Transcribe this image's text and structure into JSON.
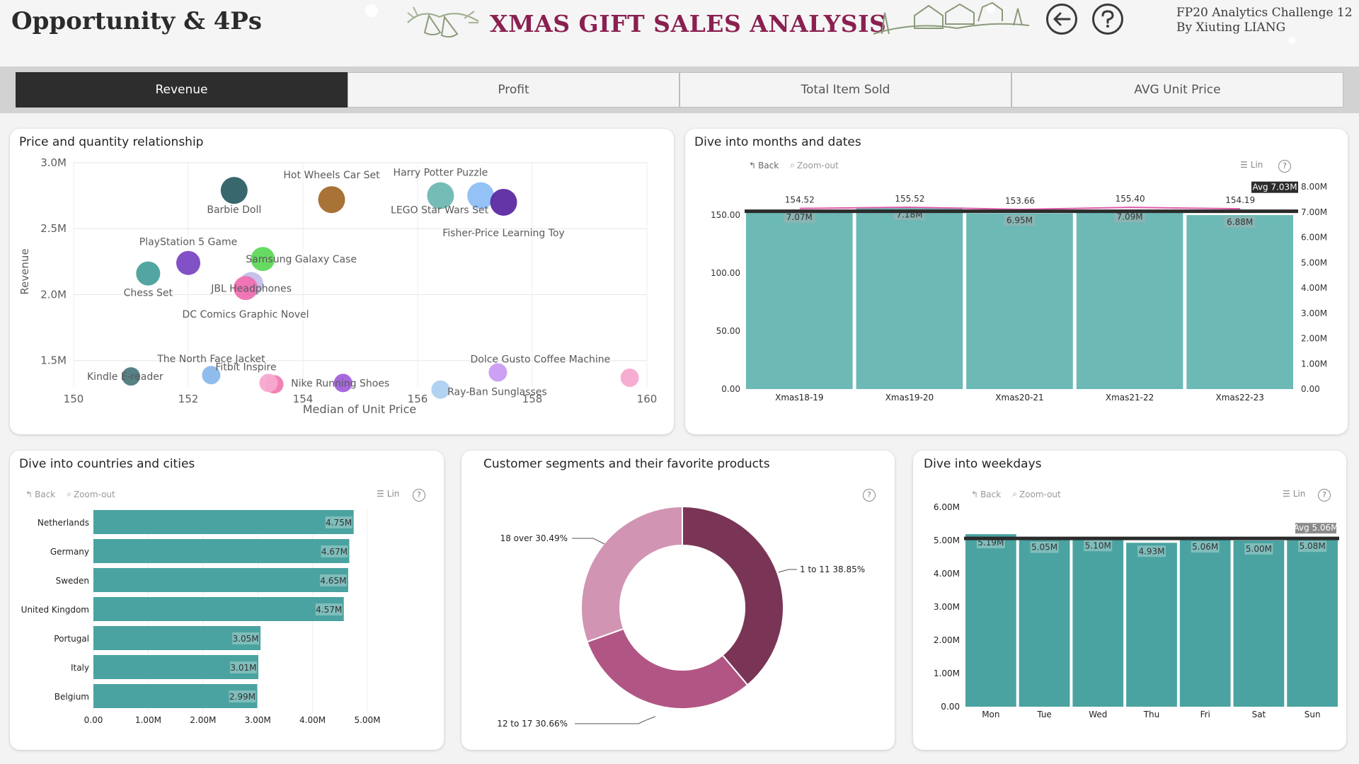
{
  "header": {
    "page_title": "Opportunity & 4Ps",
    "main_title": "XMAS GIFT SALES ANALYSIS",
    "credit_line1": "FP20 Analytics Challenge 12",
    "credit_line2": "By Xiuting LIANG",
    "back_icon": "arrow-left-circle-icon",
    "help_icon": "question-circle-icon"
  },
  "tabs": [
    {
      "label": "Revenue",
      "active": true
    },
    {
      "label": "Profit",
      "active": false
    },
    {
      "label": "Total Item Sold",
      "active": false
    },
    {
      "label": "AVG Unit Price",
      "active": false
    }
  ],
  "toolbar": {
    "back": "Back",
    "zoom_out": "Zoom-out",
    "lin": "Lin",
    "help": "?"
  },
  "colors": {
    "accent": "#8a2050",
    "teal": "#5fb2b0",
    "dark_tab": "#2d2d2d",
    "line_pink": "#e05aa8"
  },
  "scatter": {
    "title": "Price and quantity relationship",
    "chart_data": {
      "type": "scatter",
      "xlabel": "Median of Unit Price",
      "ylabel": "Revenue",
      "xlim": [
        150,
        160
      ],
      "ylim": [
        1.3,
        3.0
      ],
      "x_ticks": [
        "150",
        "152",
        "154",
        "156",
        "158",
        "160"
      ],
      "y_ticks": [
        {
          "value": 3.0,
          "label": "3.0M"
        },
        {
          "value": 2.5,
          "label": "2.5M"
        },
        {
          "value": 2.0,
          "label": "2.0M"
        },
        {
          "value": 1.5,
          "label": "1.5M"
        }
      ],
      "points": [
        {
          "label": "Barbie Doll",
          "x": 152.8,
          "y": 2.79,
          "color": "#2e5f66"
        },
        {
          "label": "Hot Wheels Car Set",
          "x": 154.5,
          "y": 2.72,
          "color": "#a46a2c"
        },
        {
          "label": "Harry Potter Puzzle",
          "x": 156.4,
          "y": 2.75,
          "color": "#6fb8b2"
        },
        {
          "label": "LEGO Star Wars Set",
          "x": 157.1,
          "y": 2.75,
          "color": "#8fbff5"
        },
        {
          "label": "Fisher-Price Learning Toy",
          "x": 157.5,
          "y": 2.7,
          "color": "#5b2aa2"
        },
        {
          "label": "PlayStation 5 Game",
          "x": 152.0,
          "y": 2.24,
          "color": "#7a48c2"
        },
        {
          "label": "Samsung Galaxy Case",
          "x": 153.3,
          "y": 2.27,
          "color": "#5fd85a"
        },
        {
          "label": "Chess Set",
          "x": 151.3,
          "y": 2.16,
          "color": "#4aa09c"
        },
        {
          "label": "JBL Headphones",
          "x": 153.1,
          "y": 2.08,
          "color": "#c2bfe8"
        },
        {
          "label": "DC Comics Graphic Novel",
          "x": 153.0,
          "y": 2.05,
          "color": "#f070b2"
        },
        {
          "label": "The North Face Jacket",
          "x": 152.4,
          "y": 1.39,
          "color": "#8ab8ec"
        },
        {
          "label": "Kindle E-reader",
          "x": 151.0,
          "y": 1.38,
          "color": "#4e7a7e"
        },
        {
          "label": "Fitbit Inspire",
          "x": 153.5,
          "y": 1.32,
          "color": "#f07cb0"
        },
        {
          "label": "Nike Running Shoes",
          "x": 154.7,
          "y": 1.33,
          "color": "#a360dc"
        },
        {
          "label": "Dolce Gusto Coffee Machine",
          "x": 157.4,
          "y": 1.41,
          "color": "#c99cf2"
        },
        {
          "label": "Ray-Ban Sunglasses",
          "x": 156.4,
          "y": 1.28,
          "color": "#aed0f0"
        },
        {
          "label": "",
          "x": 153.4,
          "y": 1.33,
          "color": "#f7a9d0"
        },
        {
          "label": "",
          "x": 159.7,
          "y": 1.37,
          "color": "#f7a9d0"
        }
      ]
    }
  },
  "months": {
    "title": "Dive into months and dates",
    "avg_label": "Avg 7.03M",
    "chart_data": {
      "type": "bar",
      "categories": [
        "Xmas18-19",
        "Xmas19-20",
        "Xmas20-21",
        "Xmas21-22",
        "Xmas22-23"
      ],
      "series": [
        {
          "name": "Revenue",
          "values": [
            7.07,
            7.18,
            6.95,
            7.09,
            6.88
          ],
          "labels": [
            "7.07M",
            "7.18M",
            "6.95M",
            "7.09M",
            "6.88M"
          ]
        },
        {
          "name": "Unit Price",
          "values": [
            154.52,
            155.52,
            153.66,
            155.4,
            154.19
          ],
          "labels": [
            "154.52",
            "155.52",
            "153.66",
            "155.40",
            "154.19"
          ]
        }
      ],
      "left_ticks": [
        "150.00",
        "100.00",
        "50.00",
        "0.00"
      ],
      "right_ticks": [
        "8.00M",
        "7.00M",
        "6.00M",
        "5.00M",
        "4.00M",
        "3.00M",
        "2.00M",
        "1.00M",
        "0.00"
      ],
      "ylim_left": [
        0,
        150
      ],
      "ylim_right": [
        0,
        8
      ],
      "avg": 7.03
    }
  },
  "countries": {
    "title": "Dive into countries and cities",
    "chart_data": {
      "type": "bar",
      "orientation": "horizontal",
      "categories": [
        "Netherlands",
        "Germany",
        "Sweden",
        "United Kingdom",
        "Portugal",
        "Italy",
        "Belgium"
      ],
      "values": [
        4.75,
        4.67,
        4.65,
        4.57,
        3.05,
        3.01,
        2.99
      ],
      "labels": [
        "4.75M",
        "4.67M",
        "4.65M",
        "4.57M",
        "3.05M",
        "3.01M",
        "2.99M"
      ],
      "x_ticks": [
        "0.00",
        "1.00M",
        "2.00M",
        "3.00M",
        "4.00M",
        "5.00M"
      ],
      "xlim": [
        0,
        5
      ]
    }
  },
  "segments": {
    "title": "Customer segments and their favorite products",
    "chart_data": {
      "type": "pie",
      "donut": true,
      "slices": [
        {
          "label": "1 to 11 38.85%",
          "value": 38.85,
          "color": "#7a3556"
        },
        {
          "label": "12 to 17 30.66%",
          "value": 30.66,
          "color": "#b15684"
        },
        {
          "label": "18 over 30.49%",
          "value": 30.49,
          "color": "#d195b3"
        }
      ]
    }
  },
  "weekdays": {
    "title": "Dive into weekdays",
    "avg_label": "Avg 5.06M",
    "chart_data": {
      "type": "bar",
      "categories": [
        "Mon",
        "Tue",
        "Wed",
        "Thu",
        "Fri",
        "Sat",
        "Sun"
      ],
      "values": [
        5.19,
        5.05,
        5.1,
        4.93,
        5.06,
        5.0,
        5.08
      ],
      "labels": [
        "5.19M",
        "5.05M",
        "5.10M",
        "4.93M",
        "5.06M",
        "5.00M",
        "5.08M"
      ],
      "y_ticks": [
        "6.00M",
        "5.00M",
        "4.00M",
        "3.00M",
        "2.00M",
        "1.00M",
        "0.00"
      ],
      "ylim": [
        0,
        6
      ],
      "avg": 5.06
    }
  }
}
